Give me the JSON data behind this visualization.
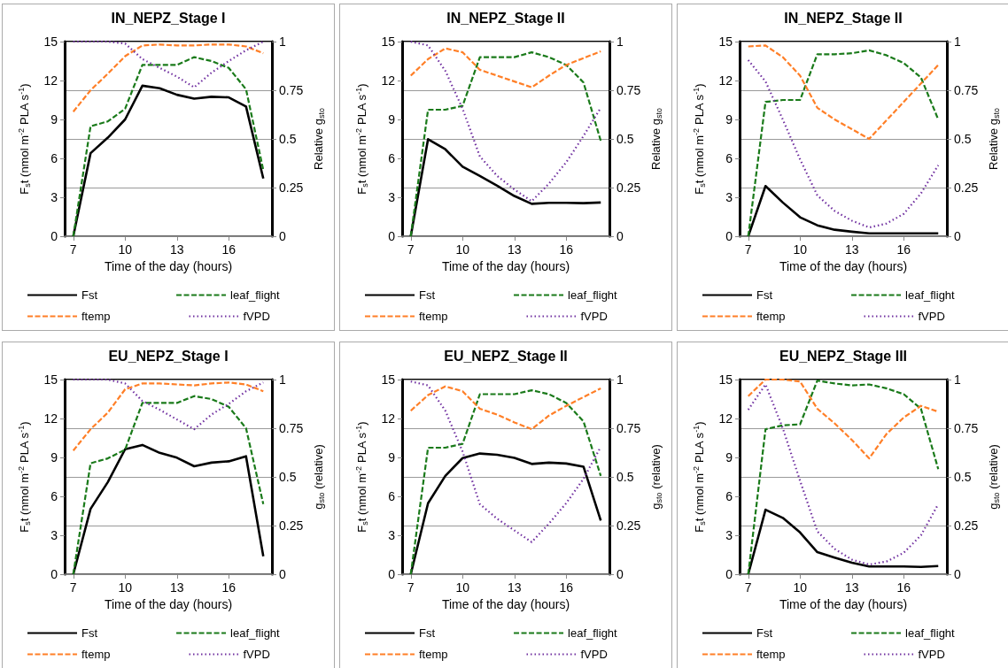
{
  "chart_data": [
    {
      "type": "line",
      "title": "IN_NEPZ_Stage I",
      "xlabel": "Time of the day (hours)",
      "ylabel": "F$_{s}$t (nmol m$^{-2}$ PLA s$^{-1}$)",
      "y2label": "Relative g$_{sto}$",
      "x": [
        7,
        8,
        9,
        10,
        11,
        12,
        13,
        14,
        15,
        16,
        17,
        18
      ],
      "xlim": [
        6.5,
        18.5
      ],
      "xticks": [
        7,
        10,
        13,
        16
      ],
      "ylim": [
        0,
        15
      ],
      "yticks": [
        0,
        3,
        6,
        9,
        12,
        15
      ],
      "y2lim": [
        0,
        1
      ],
      "y2ticks": [
        0,
        0.25,
        0.5,
        0.75,
        1
      ],
      "grid": "y2",
      "legend": "bottom",
      "marker": "none",
      "series": [
        {
          "name": "Fst",
          "color": "#000000",
          "line_style": "solid",
          "values": [
            0,
            6.4,
            7.6,
            9.0,
            11.6,
            11.4,
            10.9,
            10.6,
            10.75,
            10.7,
            10.0,
            4.45
          ]
        },
        {
          "name": "leaf_flight",
          "color": "#1a7a1a",
          "line_style": "dashed",
          "axis": "y2",
          "values": [
            0,
            0.565,
            0.59,
            0.655,
            0.88,
            0.88,
            0.88,
            0.92,
            0.9,
            0.865,
            0.755,
            0.34
          ]
        },
        {
          "name": "ftemp",
          "color": "#ff7f27",
          "line_style": "dashed",
          "axis": "y2",
          "values": [
            0.64,
            0.75,
            0.835,
            0.925,
            0.98,
            0.985,
            0.98,
            0.98,
            0.985,
            0.985,
            0.975,
            0.94
          ]
        },
        {
          "name": "fVPD",
          "color": "#7030a0",
          "line_style": "dotted",
          "axis": "y2",
          "values": [
            1,
            1,
            1,
            0.99,
            0.91,
            0.865,
            0.82,
            0.765,
            0.84,
            0.9,
            0.955,
            1
          ]
        }
      ]
    },
    {
      "type": "line",
      "title": "IN_NEPZ_Stage II",
      "xlabel": "Time of the day (hours)",
      "ylabel": "F$_{s}$t (nmol m$^{-2}$ PLA s$^{-1}$)",
      "y2label": "Relative g$_{sto}$",
      "x": [
        7,
        8,
        9,
        10,
        11,
        12,
        13,
        14,
        15,
        16,
        17,
        18
      ],
      "xlim": [
        6.5,
        18.5
      ],
      "xticks": [
        7,
        10,
        13,
        16
      ],
      "ylim": [
        0,
        15
      ],
      "yticks": [
        0,
        3,
        6,
        9,
        12,
        15
      ],
      "y2lim": [
        0,
        1
      ],
      "y2ticks": [
        0,
        0.25,
        0.5,
        0.75,
        1
      ],
      "grid": "y2",
      "legend": "bottom",
      "marker": "none",
      "series": [
        {
          "name": "Fst",
          "color": "#000000",
          "line_style": "solid",
          "values": [
            0,
            7.48,
            6.7,
            5.36,
            4.64,
            3.9,
            3.1,
            2.5,
            2.57,
            2.57,
            2.55,
            2.6
          ]
        },
        {
          "name": "leaf_flight",
          "color": "#1a7a1a",
          "line_style": "dashed",
          "axis": "y2",
          "values": [
            0,
            0.65,
            0.65,
            0.67,
            0.92,
            0.92,
            0.92,
            0.945,
            0.92,
            0.88,
            0.79,
            0.49
          ]
        },
        {
          "name": "ftemp",
          "color": "#ff7f27",
          "line_style": "dashed",
          "axis": "y2",
          "values": [
            0.825,
            0.91,
            0.965,
            0.945,
            0.855,
            0.825,
            0.795,
            0.765,
            0.825,
            0.88,
            0.915,
            0.95
          ]
        },
        {
          "name": "fVPD",
          "color": "#7030a0",
          "line_style": "dotted",
          "axis": "y2",
          "values": [
            1,
            0.98,
            0.85,
            0.655,
            0.41,
            0.31,
            0.24,
            0.18,
            0.27,
            0.38,
            0.515,
            0.66
          ]
        }
      ]
    },
    {
      "type": "line",
      "title": "IN_NEPZ_Stage II",
      "xlabel": "Time of the day (hours)",
      "ylabel": "F$_{s}$t (nmol m$^{-2}$ PLA s$^{-1}$)",
      "y2label": "Relative g$_{sto}$",
      "x": [
        7,
        8,
        9,
        10,
        11,
        12,
        13,
        14,
        15,
        16,
        17,
        18
      ],
      "xlim": [
        6.5,
        18.5
      ],
      "xticks": [
        7,
        10,
        13,
        16
      ],
      "ylim": [
        0,
        15
      ],
      "yticks": [
        0,
        3,
        6,
        9,
        12,
        15
      ],
      "y2lim": [
        0,
        1
      ],
      "y2ticks": [
        0,
        0.25,
        0.5,
        0.75,
        1
      ],
      "grid": "y2",
      "legend": "bottom",
      "marker": "none",
      "series": [
        {
          "name": "Fst",
          "color": "#000000",
          "line_style": "solid",
          "values": [
            0,
            3.87,
            2.6,
            1.46,
            0.84,
            0.5,
            0.35,
            0.22,
            0.22,
            0.22,
            0.22,
            0.22
          ]
        },
        {
          "name": "leaf_flight",
          "color": "#1a7a1a",
          "line_style": "dashed",
          "axis": "y2",
          "values": [
            0,
            0.69,
            0.7,
            0.7,
            0.935,
            0.935,
            0.94,
            0.955,
            0.93,
            0.89,
            0.815,
            0.6
          ]
        },
        {
          "name": "ftemp",
          "color": "#ff7f27",
          "line_style": "dashed",
          "axis": "y2",
          "values": [
            0.975,
            0.98,
            0.92,
            0.825,
            0.66,
            0.6,
            0.55,
            0.5,
            0.595,
            0.69,
            0.785,
            0.88
          ]
        },
        {
          "name": "fVPD",
          "color": "#7030a0",
          "line_style": "dotted",
          "axis": "y2",
          "values": [
            0.905,
            0.795,
            0.6,
            0.395,
            0.21,
            0.13,
            0.08,
            0.045,
            0.065,
            0.115,
            0.22,
            0.365
          ]
        }
      ]
    },
    {
      "type": "line",
      "title": "EU_NEPZ_Stage I",
      "xlabel": "Time of the day (hours)",
      "ylabel": "F$_{s}$t (nmol m$^{-2}$ PLA s$^{-1}$)",
      "y2label": "g$_{sto}$ (relative)",
      "x": [
        7,
        8,
        9,
        10,
        11,
        12,
        13,
        14,
        15,
        16,
        17,
        18
      ],
      "xlim": [
        6.5,
        18.5
      ],
      "xticks": [
        7,
        10,
        13,
        16
      ],
      "ylim": [
        0,
        15
      ],
      "yticks": [
        0,
        3,
        6,
        9,
        12,
        15
      ],
      "y2lim": [
        0,
        1
      ],
      "y2ticks": [
        0,
        0.25,
        0.5,
        0.75,
        1
      ],
      "grid": "y2",
      "legend": "bottom",
      "marker": "none",
      "series": [
        {
          "name": "Fst",
          "color": "#000000",
          "line_style": "solid",
          "values": [
            0,
            5.04,
            7.1,
            9.63,
            9.96,
            9.35,
            8.98,
            8.32,
            8.6,
            8.7,
            9.09,
            1.38
          ]
        },
        {
          "name": "leaf_flight",
          "color": "#1a7a1a",
          "line_style": "dashed",
          "axis": "y2",
          "values": [
            0,
            0.57,
            0.595,
            0.64,
            0.88,
            0.88,
            0.88,
            0.915,
            0.9,
            0.86,
            0.75,
            0.36
          ]
        },
        {
          "name": "ftemp",
          "color": "#ff7f27",
          "line_style": "dashed",
          "axis": "y2",
          "values": [
            0.635,
            0.745,
            0.83,
            0.95,
            0.98,
            0.98,
            0.975,
            0.97,
            0.98,
            0.985,
            0.975,
            0.94
          ]
        },
        {
          "name": "fVPD",
          "color": "#7030a0",
          "line_style": "dotted",
          "axis": "y2",
          "values": [
            1,
            1,
            1,
            0.98,
            0.89,
            0.845,
            0.795,
            0.745,
            0.82,
            0.875,
            0.94,
            0.985
          ]
        }
      ]
    },
    {
      "type": "line",
      "title": "EU_NEPZ_Stage II",
      "xlabel": "Time of the day (hours)",
      "ylabel": "F$_{s}$t (nmol m$^{-2}$ PLA s$^{-1}$)",
      "y2label": "g$_{sto}$ (relative)",
      "x": [
        7,
        8,
        9,
        10,
        11,
        12,
        13,
        14,
        15,
        16,
        17,
        18
      ],
      "xlim": [
        6.5,
        18.5
      ],
      "xticks": [
        7,
        10,
        13,
        16
      ],
      "ylim": [
        0,
        15
      ],
      "yticks": [
        0,
        3,
        6,
        9,
        12,
        15
      ],
      "y2lim": [
        0,
        1
      ],
      "y2ticks": [
        0,
        0.25,
        0.5,
        0.75,
        1
      ],
      "grid": "y2",
      "legend": "bottom",
      "marker": "none",
      "series": [
        {
          "name": "Fst",
          "color": "#000000",
          "line_style": "solid",
          "values": [
            0,
            5.47,
            7.58,
            8.95,
            9.3,
            9.2,
            8.97,
            8.5,
            8.6,
            8.53,
            8.29,
            4.14
          ]
        },
        {
          "name": "leaf_flight",
          "color": "#1a7a1a",
          "line_style": "dashed",
          "axis": "y2",
          "values": [
            0,
            0.65,
            0.65,
            0.67,
            0.925,
            0.925,
            0.925,
            0.945,
            0.925,
            0.88,
            0.785,
            0.505
          ]
        },
        {
          "name": "ftemp",
          "color": "#ff7f27",
          "line_style": "dashed",
          "axis": "y2",
          "values": [
            0.84,
            0.92,
            0.965,
            0.94,
            0.85,
            0.82,
            0.78,
            0.745,
            0.815,
            0.865,
            0.91,
            0.955
          ]
        },
        {
          "name": "fVPD",
          "color": "#7030a0",
          "line_style": "dotted",
          "axis": "y2",
          "values": [
            0.99,
            0.97,
            0.84,
            0.63,
            0.36,
            0.285,
            0.225,
            0.165,
            0.26,
            0.365,
            0.49,
            0.655
          ]
        }
      ]
    },
    {
      "type": "line",
      "title": "EU_NEPZ_Stage III",
      "xlabel": "Time of the day (hours)",
      "ylabel": "F$_{s}$t (nmol m$^{-2}$ PLA s$^{-1}$)",
      "y2label": "g$_{sto}$ (relative)",
      "x": [
        7,
        8,
        9,
        10,
        11,
        12,
        13,
        14,
        15,
        16,
        17,
        18
      ],
      "xlim": [
        6.5,
        18.5
      ],
      "xticks": [
        7,
        10,
        13,
        16
      ],
      "ylim": [
        0,
        15
      ],
      "yticks": [
        0,
        3,
        6,
        9,
        12,
        15
      ],
      "y2lim": [
        0,
        1
      ],
      "y2ticks": [
        0,
        0.25,
        0.5,
        0.75,
        1
      ],
      "grid": "y2",
      "legend": "bottom",
      "marker": "none",
      "series": [
        {
          "name": "Fst",
          "color": "#000000",
          "line_style": "solid",
          "values": [
            0,
            4.97,
            4.34,
            3.22,
            1.7,
            1.28,
            0.89,
            0.6,
            0.6,
            0.6,
            0.56,
            0.63
          ]
        },
        {
          "name": "leaf_flight",
          "color": "#1a7a1a",
          "line_style": "dashed",
          "axis": "y2",
          "values": [
            0,
            0.745,
            0.765,
            0.77,
            0.995,
            0.98,
            0.97,
            0.975,
            0.955,
            0.925,
            0.85,
            0.54
          ]
        },
        {
          "name": "ftemp",
          "color": "#ff7f27",
          "line_style": "dashed",
          "axis": "y2",
          "values": [
            0.915,
            1,
            1,
            0.99,
            0.85,
            0.775,
            0.69,
            0.595,
            0.72,
            0.805,
            0.865,
            0.835
          ]
        },
        {
          "name": "fVPD",
          "color": "#7030a0",
          "line_style": "dotted",
          "axis": "y2",
          "values": [
            0.845,
            0.975,
            0.75,
            0.48,
            0.22,
            0.13,
            0.075,
            0.05,
            0.065,
            0.11,
            0.2,
            0.36
          ]
        }
      ]
    }
  ]
}
